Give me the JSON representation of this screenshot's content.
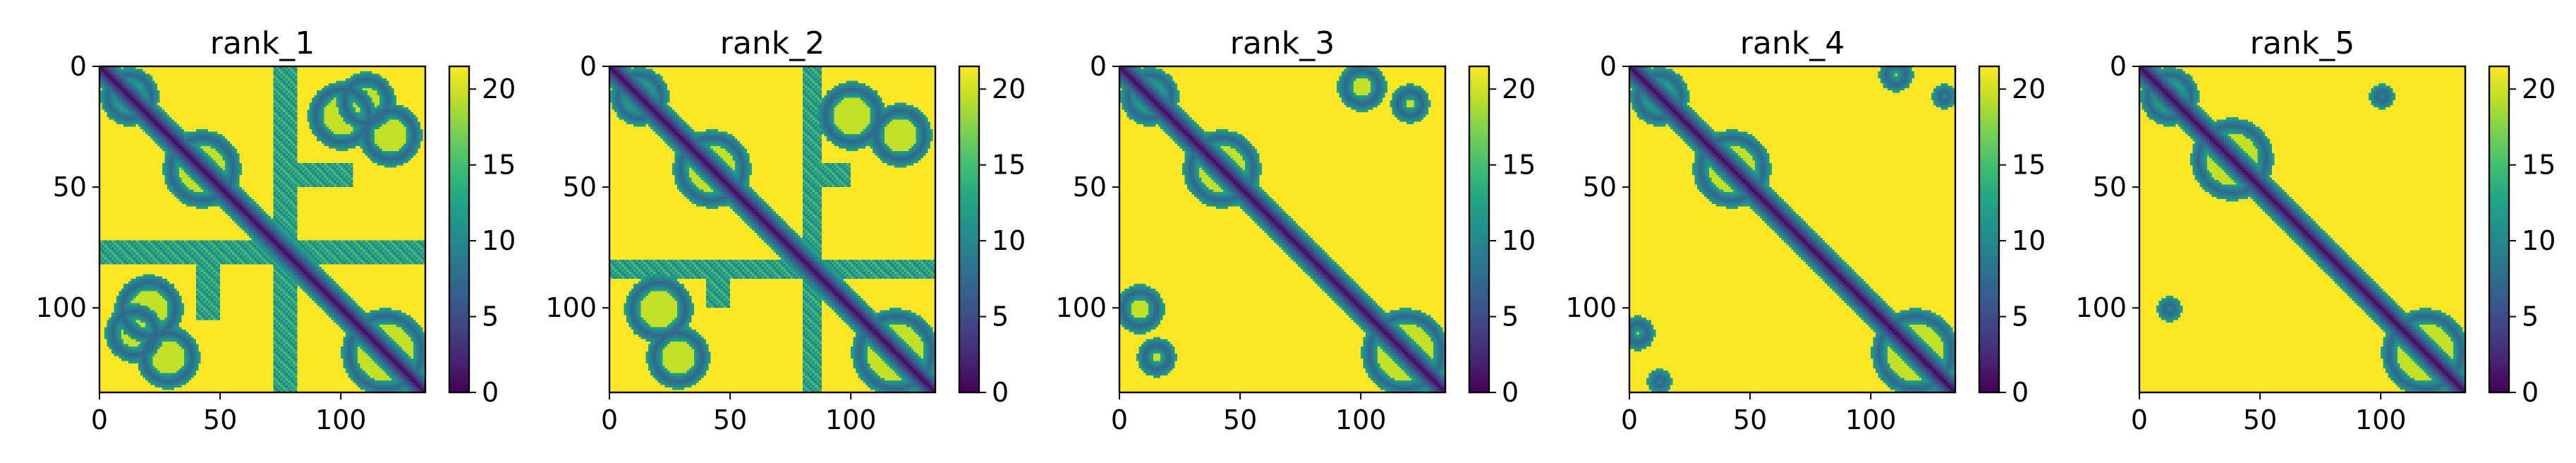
{
  "figure": {
    "background": "#ffffff"
  },
  "colors": {
    "viridis": [
      "#440154",
      "#482475",
      "#414487",
      "#355f8d",
      "#2a788e",
      "#21918c",
      "#22a884",
      "#44bf70",
      "#7ad151",
      "#bddf26",
      "#fde725"
    ],
    "far": "#fde725",
    "contact": "#21918c",
    "mid": "#3b528b",
    "diag": "#440154",
    "axes": "#000000"
  },
  "chart_data": [
    {
      "type": "heatmap",
      "title": "rank_1",
      "matrix_size": 135,
      "colormap": "viridis",
      "value_range": [
        0,
        21.5
      ],
      "xlim": [
        0,
        135
      ],
      "ylim": [
        135,
        0
      ],
      "xticks": [
        0,
        50,
        100
      ],
      "xticklabels": [
        "0",
        "50",
        "100"
      ],
      "yticks": [
        0,
        50,
        100
      ],
      "yticklabels": [
        "0",
        "50",
        "100"
      ],
      "colorbar_ticks": [
        0,
        5,
        10,
        15,
        20
      ],
      "colorbar_ticklabels": [
        "0",
        "5",
        "10",
        "15",
        "20"
      ],
      "features": [
        {
          "kind": "diagonal_band",
          "width": 8
        },
        {
          "kind": "loop",
          "i": 42,
          "j": 42,
          "r": 13
        },
        {
          "kind": "loop",
          "i": 118,
          "j": 118,
          "r": 15
        },
        {
          "kind": "loop",
          "i": 12,
          "j": 12,
          "r": 9
        },
        {
          "kind": "loop",
          "i": 20,
          "j": 100,
          "r": 11
        },
        {
          "kind": "loop",
          "i": 100,
          "j": 20,
          "r": 11
        },
        {
          "kind": "loop",
          "i": 28,
          "j": 120,
          "r": 10
        },
        {
          "kind": "loop",
          "i": 120,
          "j": 28,
          "r": 10
        },
        {
          "kind": "loop",
          "i": 110,
          "j": 14,
          "r": 9
        },
        {
          "kind": "loop",
          "i": 14,
          "j": 110,
          "r": 9
        },
        {
          "kind": "strip",
          "i0": 72,
          "i1": 82,
          "j0": 0,
          "j1": 135
        },
        {
          "kind": "strip",
          "i0": 0,
          "i1": 135,
          "j0": 72,
          "j1": 82
        },
        {
          "kind": "strip",
          "i0": 40,
          "i1": 50,
          "j0": 80,
          "j1": 105
        },
        {
          "kind": "strip",
          "i0": 80,
          "i1": 105,
          "j0": 40,
          "j1": 50
        }
      ]
    },
    {
      "type": "heatmap",
      "title": "rank_2",
      "matrix_size": 135,
      "colormap": "viridis",
      "value_range": [
        0,
        21.5
      ],
      "xlim": [
        0,
        135
      ],
      "ylim": [
        135,
        0
      ],
      "xticks": [
        0,
        50,
        100
      ],
      "xticklabels": [
        "0",
        "50",
        "100"
      ],
      "yticks": [
        0,
        50,
        100
      ],
      "yticklabels": [
        "0",
        "50",
        "100"
      ],
      "colorbar_ticks": [
        0,
        5,
        10,
        15,
        20
      ],
      "colorbar_ticklabels": [
        "0",
        "5",
        "10",
        "15",
        "20"
      ],
      "features": [
        {
          "kind": "diagonal_band",
          "width": 8
        },
        {
          "kind": "loop",
          "i": 42,
          "j": 42,
          "r": 13
        },
        {
          "kind": "loop",
          "i": 118,
          "j": 118,
          "r": 15
        },
        {
          "kind": "loop",
          "i": 12,
          "j": 12,
          "r": 9
        },
        {
          "kind": "loop",
          "i": 20,
          "j": 100,
          "r": 11
        },
        {
          "kind": "loop",
          "i": 100,
          "j": 20,
          "r": 11
        },
        {
          "kind": "loop",
          "i": 28,
          "j": 120,
          "r": 10
        },
        {
          "kind": "loop",
          "i": 120,
          "j": 28,
          "r": 10
        },
        {
          "kind": "strip",
          "i0": 80,
          "i1": 88,
          "j0": 0,
          "j1": 135
        },
        {
          "kind": "strip",
          "i0": 0,
          "i1": 135,
          "j0": 80,
          "j1": 88
        },
        {
          "kind": "strip",
          "i0": 40,
          "i1": 50,
          "j0": 80,
          "j1": 100
        },
        {
          "kind": "strip",
          "i0": 80,
          "i1": 100,
          "j0": 40,
          "j1": 50
        }
      ]
    },
    {
      "type": "heatmap",
      "title": "rank_3",
      "matrix_size": 135,
      "colormap": "viridis",
      "value_range": [
        0,
        21.5
      ],
      "xlim": [
        0,
        135
      ],
      "ylim": [
        135,
        0
      ],
      "xticks": [
        0,
        50,
        100
      ],
      "xticklabels": [
        "0",
        "50",
        "100"
      ],
      "yticks": [
        0,
        50,
        100
      ],
      "yticklabels": [
        "0",
        "50",
        "100"
      ],
      "colorbar_ticks": [
        0,
        5,
        10,
        15,
        20
      ],
      "colorbar_ticklabels": [
        "0",
        "5",
        "10",
        "15",
        "20"
      ],
      "features": [
        {
          "kind": "diagonal_band",
          "width": 8
        },
        {
          "kind": "loop",
          "i": 42,
          "j": 42,
          "r": 13
        },
        {
          "kind": "loop",
          "i": 118,
          "j": 118,
          "r": 15
        },
        {
          "kind": "loop",
          "i": 12,
          "j": 12,
          "r": 9
        },
        {
          "kind": "loop",
          "i": 8,
          "j": 100,
          "r": 7
        },
        {
          "kind": "loop",
          "i": 100,
          "j": 8,
          "r": 7
        },
        {
          "kind": "loop",
          "i": 15,
          "j": 120,
          "r": 5
        },
        {
          "kind": "loop",
          "i": 120,
          "j": 15,
          "r": 5
        }
      ]
    },
    {
      "type": "heatmap",
      "title": "rank_4",
      "matrix_size": 135,
      "colormap": "viridis",
      "value_range": [
        0,
        21.5
      ],
      "xlim": [
        0,
        135
      ],
      "ylim": [
        135,
        0
      ],
      "xticks": [
        0,
        50,
        100
      ],
      "xticklabels": [
        "0",
        "50",
        "100"
      ],
      "yticks": [
        0,
        50,
        100
      ],
      "yticklabels": [
        "0",
        "50",
        "100"
      ],
      "colorbar_ticks": [
        0,
        5,
        10,
        15,
        20
      ],
      "colorbar_ticklabels": [
        "0",
        "5",
        "10",
        "15",
        "20"
      ],
      "features": [
        {
          "kind": "diagonal_band",
          "width": 8
        },
        {
          "kind": "loop",
          "i": 42,
          "j": 42,
          "r": 13
        },
        {
          "kind": "loop",
          "i": 118,
          "j": 118,
          "r": 15
        },
        {
          "kind": "loop",
          "i": 12,
          "j": 12,
          "r": 9
        },
        {
          "kind": "loop",
          "i": 3,
          "j": 110,
          "r": 4
        },
        {
          "kind": "loop",
          "i": 110,
          "j": 3,
          "r": 4
        },
        {
          "kind": "loop",
          "i": 12,
          "j": 130,
          "r": 2
        },
        {
          "kind": "loop",
          "i": 130,
          "j": 12,
          "r": 2
        }
      ]
    },
    {
      "type": "heatmap",
      "title": "rank_5",
      "matrix_size": 135,
      "colormap": "viridis",
      "value_range": [
        0,
        21.5
      ],
      "xlim": [
        0,
        135
      ],
      "ylim": [
        135,
        0
      ],
      "xticks": [
        0,
        50,
        100
      ],
      "xticklabels": [
        "0",
        "50",
        "100"
      ],
      "yticks": [
        0,
        50,
        100
      ],
      "yticklabels": [
        "0",
        "50",
        "100"
      ],
      "colorbar_ticks": [
        0,
        5,
        10,
        15,
        20
      ],
      "colorbar_ticklabels": [
        "0",
        "5",
        "10",
        "15",
        "20"
      ],
      "features": [
        {
          "kind": "diagonal_band",
          "width": 8
        },
        {
          "kind": "loop",
          "i": 38,
          "j": 38,
          "r": 14
        },
        {
          "kind": "loop",
          "i": 118,
          "j": 118,
          "r": 15
        },
        {
          "kind": "loop",
          "i": 12,
          "j": 12,
          "r": 9
        },
        {
          "kind": "loop",
          "i": 12,
          "j": 100,
          "r": 2
        },
        {
          "kind": "loop",
          "i": 100,
          "j": 12,
          "r": 2
        }
      ]
    }
  ]
}
